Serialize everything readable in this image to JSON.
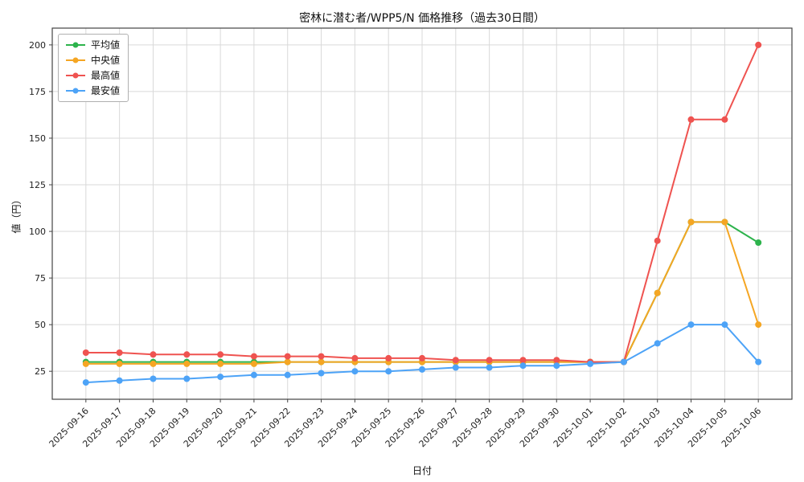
{
  "chart_data": {
    "type": "line",
    "title": "密林に潜む者/WPP5/N 価格推移（過去30日間）",
    "xlabel": "日付",
    "ylabel": "値（円）",
    "categories": [
      "2025-09-16",
      "2025-09-17",
      "2025-09-18",
      "2025-09-19",
      "2025-09-20",
      "2025-09-21",
      "2025-09-22",
      "2025-09-23",
      "2025-09-24",
      "2025-09-25",
      "2025-09-26",
      "2025-09-27",
      "2025-09-28",
      "2025-09-29",
      "2025-09-30",
      "2025-10-01",
      "2025-10-02",
      "2025-10-03",
      "2025-10-04",
      "2025-10-05",
      "2025-10-06"
    ],
    "series": [
      {
        "name": "平均値",
        "color": "#2db34c",
        "values": [
          30,
          30,
          30,
          30,
          30,
          30,
          30,
          30,
          30,
          30,
          30,
          30,
          30,
          30,
          30,
          30,
          30,
          67,
          105,
          105,
          94
        ]
      },
      {
        "name": "中央値",
        "color": "#f5a623",
        "values": [
          29,
          29,
          29,
          29,
          29,
          29,
          30,
          30,
          30,
          30,
          30,
          30,
          30,
          30,
          30,
          30,
          30,
          67,
          105,
          105,
          50
        ]
      },
      {
        "name": "最高値",
        "color": "#ef5350",
        "values": [
          35,
          35,
          34,
          34,
          34,
          33,
          33,
          33,
          32,
          32,
          32,
          31,
          31,
          31,
          31,
          30,
          30,
          95,
          160,
          160,
          200
        ]
      },
      {
        "name": "最安値",
        "color": "#4da3f7",
        "values": [
          19,
          20,
          21,
          21,
          22,
          23,
          23,
          24,
          25,
          25,
          26,
          27,
          27,
          28,
          28,
          29,
          30,
          40,
          50,
          50,
          30
        ]
      }
    ],
    "ylim": [
      10,
      209
    ],
    "yticks": [
      25,
      50,
      75,
      100,
      125,
      150,
      175,
      200
    ],
    "grid": true,
    "legend_position": "upper-left",
    "grid_color": "#d9d9d9",
    "spine_color": "#444444",
    "tick_label_color": "#222222"
  }
}
